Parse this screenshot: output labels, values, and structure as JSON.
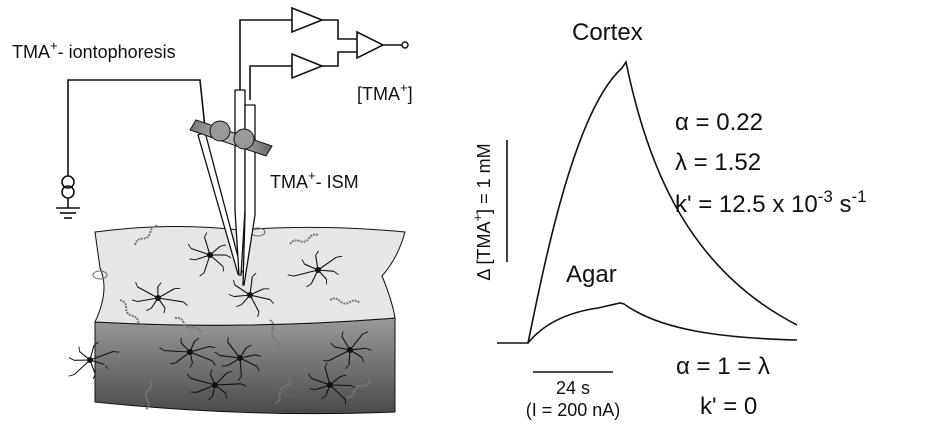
{
  "labels": {
    "iontophoresis": [
      "TMA",
      "+",
      "- iontophoresis"
    ],
    "output": [
      "[TMA",
      "+",
      "]"
    ],
    "ism": [
      "TMA",
      "+",
      "- ISM"
    ],
    "cortex": "Cortex",
    "agar": "Agar",
    "cortex_params": {
      "alpha": "α = 0.22",
      "lambda": "λ = 1.52",
      "k": [
        "k' = 12.5 x 10",
        "-3",
        " s",
        "-1"
      ]
    },
    "scale_y": [
      "Δ [TMA",
      "+",
      "] = 1 mM"
    ],
    "scale_x": "24 s",
    "current": "(I = 200 nA)",
    "agar_params": {
      "alpha_lambda": "α = 1 = λ",
      "k": "k' = 0"
    }
  }
}
